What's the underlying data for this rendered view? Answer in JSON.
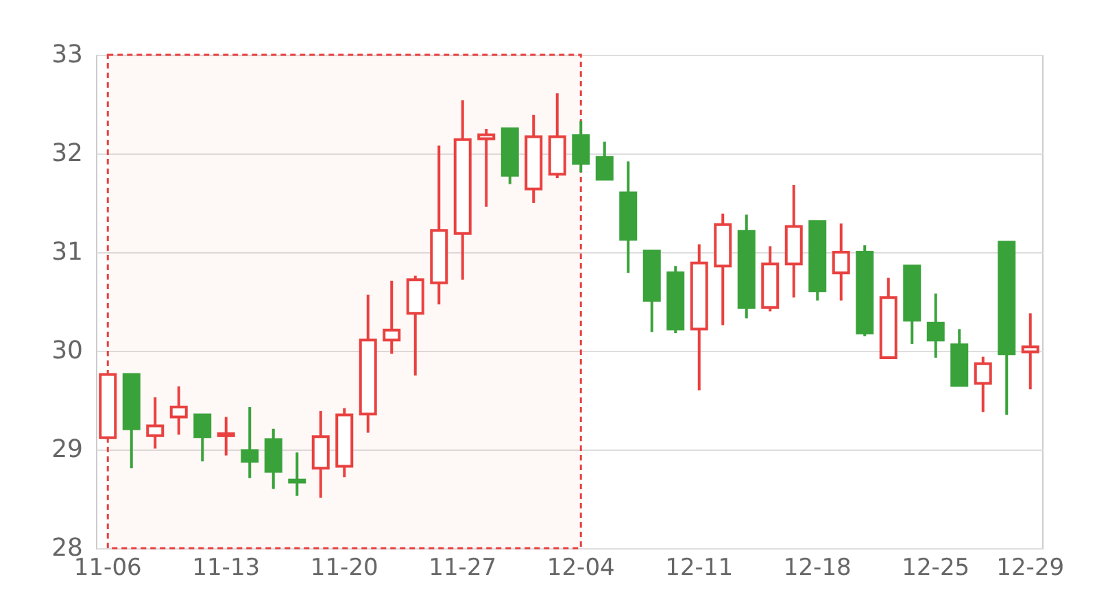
{
  "chart_data": {
    "type": "candlestick",
    "categories": [
      "11-06",
      null,
      null,
      null,
      null,
      "11-13",
      null,
      null,
      null,
      null,
      "11-20",
      null,
      null,
      null,
      null,
      "11-27",
      null,
      null,
      null,
      null,
      "12-04",
      null,
      null,
      null,
      null,
      "12-11",
      null,
      null,
      null,
      null,
      "12-18",
      null,
      null,
      null,
      null,
      "12-25",
      null,
      null,
      null,
      "12-29"
    ],
    "ylim": [
      28,
      33
    ],
    "yticks": [
      28,
      29,
      30,
      31,
      32,
      33
    ],
    "grid": "y",
    "ohlc": [
      [
        29.12,
        29.76,
        29.12,
        29.76
      ],
      [
        29.76,
        29.76,
        28.81,
        29.21
      ],
      [
        29.14,
        29.53,
        29.01,
        29.24
      ],
      [
        29.33,
        29.64,
        29.15,
        29.43
      ],
      [
        29.35,
        29.35,
        28.88,
        29.13
      ],
      [
        29.14,
        29.33,
        28.94,
        29.16
      ],
      [
        28.99,
        29.43,
        28.71,
        28.88
      ],
      [
        29.1,
        29.21,
        28.6,
        28.78
      ],
      [
        28.69,
        28.97,
        28.53,
        28.67
      ],
      [
        28.81,
        29.39,
        28.51,
        29.13
      ],
      [
        28.83,
        29.42,
        28.72,
        29.35
      ],
      [
        29.36,
        30.57,
        29.17,
        30.11
      ],
      [
        30.11,
        30.71,
        29.97,
        30.21
      ],
      [
        30.38,
        30.76,
        29.75,
        30.72
      ],
      [
        30.69,
        32.08,
        30.47,
        31.22
      ],
      [
        31.19,
        32.54,
        30.72,
        32.14
      ],
      [
        32.15,
        32.25,
        31.46,
        32.19
      ],
      [
        32.25,
        32.25,
        31.69,
        31.78
      ],
      [
        31.64,
        32.39,
        31.5,
        32.17
      ],
      [
        31.79,
        32.61,
        31.75,
        32.17
      ],
      [
        32.18,
        32.33,
        31.81,
        31.9
      ],
      [
        31.96,
        32.12,
        31.74,
        31.74
      ],
      [
        31.6,
        31.92,
        30.79,
        31.13
      ],
      [
        31.01,
        31.01,
        30.19,
        30.51
      ],
      [
        30.79,
        30.86,
        30.18,
        30.22
      ],
      [
        30.22,
        31.08,
        29.6,
        30.89
      ],
      [
        30.86,
        31.39,
        30.26,
        31.28
      ],
      [
        31.21,
        31.38,
        30.33,
        30.44
      ],
      [
        30.44,
        31.06,
        30.4,
        30.88
      ],
      [
        30.88,
        31.68,
        30.54,
        31.26
      ],
      [
        31.31,
        31.31,
        30.51,
        30.61
      ],
      [
        30.79,
        31.29,
        30.51,
        31.0
      ],
      [
        31.0,
        31.07,
        30.15,
        30.18
      ],
      [
        29.93,
        30.74,
        29.92,
        30.54
      ],
      [
        30.86,
        30.86,
        30.07,
        30.31
      ],
      [
        30.28,
        30.58,
        29.93,
        30.11
      ],
      [
        30.06,
        30.22,
        29.65,
        29.65
      ],
      [
        29.67,
        29.94,
        29.38,
        29.87
      ],
      [
        31.1,
        31.1,
        29.35,
        29.97
      ],
      [
        29.99,
        30.38,
        29.61,
        30.04
      ]
    ],
    "colors": [
      "#e8413f",
      "#3aa23a",
      "#e8413f",
      "#e8413f",
      "#3aa23a",
      "#e8413f",
      "#3aa23a",
      "#3aa23a",
      "#3aa23a",
      "#e8413f",
      "#e8413f",
      "#e8413f",
      "#e8413f",
      "#e8413f",
      "#e8413f",
      "#e8413f",
      "#e8413f",
      "#3aa23a",
      "#e8413f",
      "#e8413f",
      "#3aa23a",
      "#3aa23a",
      "#3aa23a",
      "#3aa23a",
      "#3aa23a",
      "#e8413f",
      "#e8413f",
      "#3aa23a",
      "#e8413f",
      "#e8413f",
      "#3aa23a",
      "#e8413f",
      "#3aa23a",
      "#e8413f",
      "#3aa23a",
      "#3aa23a",
      "#3aa23a",
      "#e8413f",
      "#3aa23a",
      "#e8413f"
    ],
    "bands": [
      {
        "axis": "x",
        "from": "11-06",
        "to": "12-04",
        "color": "#e8413f"
      }
    ]
  }
}
